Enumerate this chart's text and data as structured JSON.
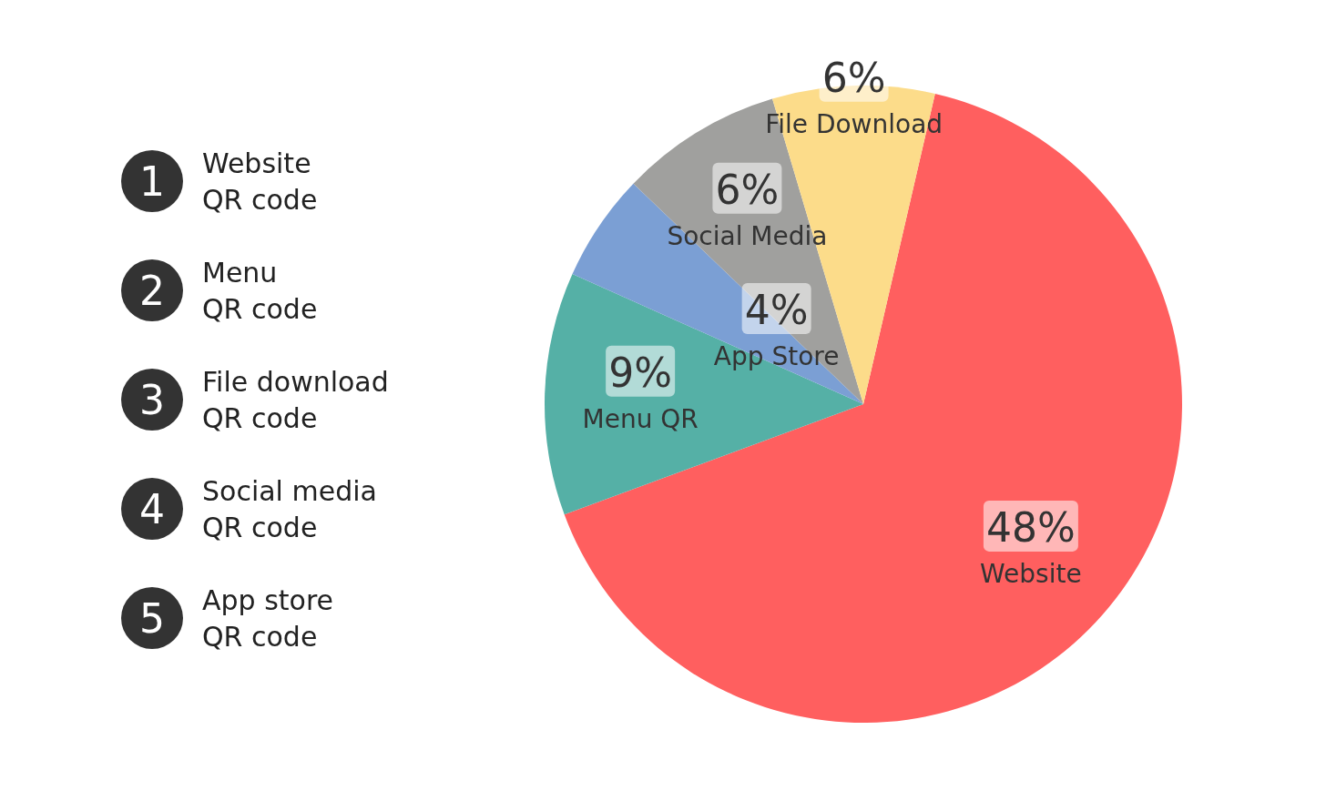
{
  "chart_data": {
    "type": "pie",
    "categories": [
      "Website",
      "Menu QR",
      "App Store",
      "Social Media",
      "File Download"
    ],
    "values": [
      48,
      9,
      4,
      6,
      6
    ],
    "value_labels": [
      "48%",
      "9%",
      "4%",
      "6%",
      "6%"
    ],
    "colors": [
      "#ff5f5f",
      "#55b0a6",
      "#7b9fd4",
      "#a0a09e",
      "#fcdc8a"
    ],
    "legend": false,
    "annotations": [
      "1",
      "Website\nQR code",
      "2",
      "Menu\nQR code",
      "3",
      "File download\nQR code",
      "4",
      "Social media\nQR code",
      "5",
      "App store\nQR code"
    ]
  }
}
